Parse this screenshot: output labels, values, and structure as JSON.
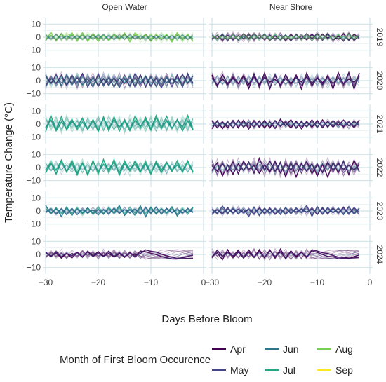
{
  "chart_data": {
    "type": "line",
    "layout": "faceted grid, 6 rows (years) x 2 columns (locations)",
    "columns": [
      "Open Water",
      "Near Shore"
    ],
    "rows": [
      "2019",
      "2020",
      "2021",
      "2022",
      "2023",
      "2024"
    ],
    "xlabel": "Days Before Bloom",
    "ylabel": "Temperature Change (°C)",
    "xlim": [
      -30,
      0
    ],
    "ylim": [
      -15,
      15
    ],
    "x_ticks": [
      "−30",
      "−20",
      "−10",
      "0"
    ],
    "x_tick_values": [
      -30,
      -20,
      -10,
      0
    ],
    "y_ticks": [
      "10",
      "0",
      "−10"
    ],
    "y_tick_values": [
      10,
      0,
      -10
    ],
    "grid": true,
    "legend": {
      "title": "Month of First Bloom Occurence",
      "position": "bottom",
      "entries": [
        {
          "label": "Apr",
          "color": "#440154"
        },
        {
          "label": "May",
          "color": "#414487"
        },
        {
          "label": "Jun",
          "color": "#2a788e"
        },
        {
          "label": "Jul",
          "color": "#22a884"
        },
        {
          "label": "Aug",
          "color": "#7ad151"
        },
        {
          "label": "Sep",
          "color": "#fde725"
        }
      ]
    },
    "panels": [
      {
        "column": "Open Water",
        "row": "2019",
        "series_months": [
          "Aug",
          "Jul",
          "May"
        ],
        "dominant": "Aug",
        "amplitude_c": 3
      },
      {
        "column": "Near Shore",
        "row": "2019",
        "series_months": [
          "Apr",
          "May",
          "Jul",
          "Aug"
        ],
        "dominant": "Apr",
        "amplitude_c": 3
      },
      {
        "column": "Open Water",
        "row": "2020",
        "series_months": [
          "May",
          "Jun",
          "Jul",
          "Apr"
        ],
        "dominant": "May",
        "amplitude_c": 5
      },
      {
        "column": "Near Shore",
        "row": "2020",
        "series_months": [
          "Apr",
          "May",
          "Jun"
        ],
        "dominant": "Apr",
        "amplitude_c": 5
      },
      {
        "column": "Open Water",
        "row": "2021",
        "series_months": [
          "Jul",
          "Jun"
        ],
        "dominant": "Jul",
        "amplitude_c": 5
      },
      {
        "column": "Near Shore",
        "row": "2021",
        "series_months": [
          "Apr",
          "May",
          "Jun"
        ],
        "dominant": "Apr",
        "amplitude_c": 3
      },
      {
        "column": "Open Water",
        "row": "2022",
        "series_months": [
          "Jul",
          "Jun"
        ],
        "dominant": "Jul",
        "amplitude_c": 5
      },
      {
        "column": "Near Shore",
        "row": "2022",
        "series_months": [
          "Apr",
          "May",
          "Jun"
        ],
        "dominant": "Apr",
        "amplitude_c": 5
      },
      {
        "column": "Open Water",
        "row": "2023",
        "series_months": [
          "Jun",
          "Jul",
          "May"
        ],
        "dominant": "Jun",
        "amplitude_c": 3
      },
      {
        "column": "Near Shore",
        "row": "2023",
        "series_months": [
          "May",
          "Apr",
          "Jun"
        ],
        "dominant": "May",
        "amplitude_c": 3
      },
      {
        "column": "Open Water",
        "row": "2024",
        "series_months": [
          "Apr",
          "May"
        ],
        "dominant": "Apr",
        "amplitude_c": 3
      },
      {
        "column": "Near Shore",
        "row": "2024",
        "series_months": [
          "Apr",
          "May"
        ],
        "dominant": "Apr",
        "amplitude_c": 3
      }
    ]
  }
}
